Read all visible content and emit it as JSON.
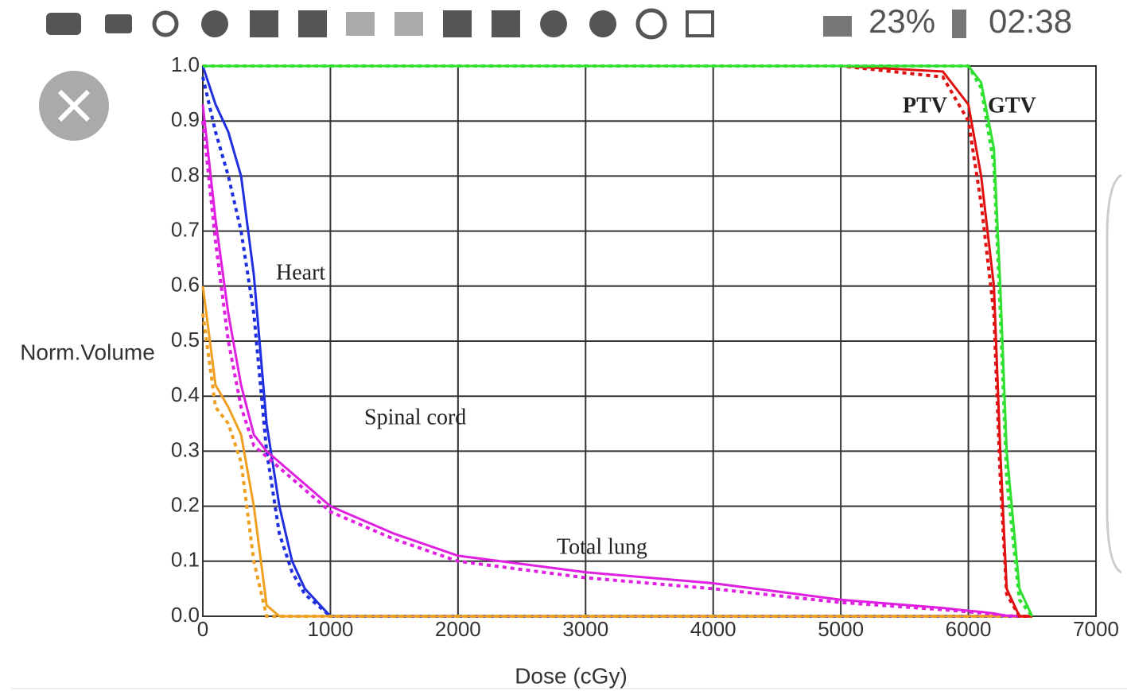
{
  "status_bar": {
    "battery": "23%",
    "time": "02:38"
  },
  "chart_data": {
    "type": "line",
    "xlabel": "Dose (cGy)",
    "ylabel": "Norm.Volume",
    "annotations": [
      "Heart",
      "Spinal cord",
      "Total lung",
      "PTV",
      "GTV"
    ],
    "x": [
      0,
      100,
      200,
      300,
      400,
      500,
      600,
      700,
      800,
      1000,
      1500,
      2000,
      3000,
      4000,
      5000,
      5800,
      6000,
      6100,
      6200,
      6250,
      6300,
      6400,
      6500
    ],
    "series": [
      {
        "color": "#1f2fe0",
        "dash": false,
        "values": [
          1.0,
          0.93,
          0.88,
          0.8,
          0.62,
          0.35,
          0.2,
          0.1,
          0.05,
          0,
          0,
          0,
          0,
          0,
          0,
          0,
          0,
          0,
          0,
          0,
          0,
          0,
          0
        ]
      },
      {
        "color": "#1f2fe0",
        "dash": true,
        "values": [
          0.98,
          0.88,
          0.8,
          0.7,
          0.55,
          0.3,
          0.15,
          0.08,
          0.04,
          0,
          0,
          0,
          0,
          0,
          0,
          0,
          0,
          0,
          0,
          0,
          0,
          0,
          0
        ]
      },
      {
        "color": "#f0a020",
        "dash": false,
        "values": [
          0.6,
          0.42,
          0.38,
          0.33,
          0.2,
          0.02,
          0,
          0,
          0,
          0,
          0,
          0,
          0,
          0,
          0,
          0,
          0,
          0,
          0,
          0,
          0,
          0,
          0
        ]
      },
      {
        "color": "#f0a020",
        "dash": true,
        "values": [
          0.55,
          0.38,
          0.35,
          0.28,
          0.1,
          0,
          0,
          0,
          0,
          0,
          0,
          0,
          0,
          0,
          0,
          0,
          0,
          0,
          0,
          0,
          0,
          0,
          0
        ]
      },
      {
        "color": "#e020e0",
        "dash": false,
        "values": [
          0.93,
          0.72,
          0.55,
          0.42,
          0.33,
          0.3,
          0.28,
          0.26,
          0.24,
          0.2,
          0.15,
          0.11,
          0.08,
          0.06,
          0.03,
          0.015,
          0.01,
          0.008,
          0.005,
          0.003,
          0.001,
          0,
          0
        ]
      },
      {
        "color": "#e020e0",
        "dash": true,
        "values": [
          0.9,
          0.68,
          0.5,
          0.38,
          0.31,
          0.29,
          0.27,
          0.25,
          0.23,
          0.19,
          0.14,
          0.1,
          0.07,
          0.05,
          0.025,
          0.012,
          0.008,
          0.006,
          0.004,
          0.002,
          0.001,
          0,
          0
        ]
      },
      {
        "color": "#e01010",
        "dash": false,
        "values": [
          1,
          1,
          1,
          1,
          1,
          1,
          1,
          1,
          1,
          1,
          1,
          1,
          1,
          1,
          1,
          0.99,
          0.93,
          0.8,
          0.6,
          0.3,
          0.05,
          0,
          0
        ]
      },
      {
        "color": "#e01010",
        "dash": true,
        "values": [
          1,
          1,
          1,
          1,
          1,
          1,
          1,
          1,
          1,
          1,
          1,
          1,
          1,
          1,
          1,
          0.98,
          0.9,
          0.75,
          0.55,
          0.25,
          0.04,
          0,
          0
        ]
      },
      {
        "color": "#30e030",
        "dash": false,
        "values": [
          1,
          1,
          1,
          1,
          1,
          1,
          1,
          1,
          1,
          1,
          1,
          1,
          1,
          1,
          1,
          1,
          1,
          0.97,
          0.85,
          0.6,
          0.3,
          0.05,
          0
        ]
      },
      {
        "color": "#30e030",
        "dash": true,
        "values": [
          1,
          1,
          1,
          1,
          1,
          1,
          1,
          1,
          1,
          1,
          1,
          1,
          1,
          1,
          1,
          1,
          1,
          0.96,
          0.82,
          0.55,
          0.25,
          0.03,
          0
        ]
      }
    ],
    "xlim": [
      0,
      7000
    ],
    "xticks": [
      0,
      1000,
      2000,
      3000,
      4000,
      5000,
      6000,
      7000
    ],
    "ylim": [
      0,
      1
    ],
    "yticks": [
      {
        "value": 0,
        "label": "0.0"
      },
      0.1,
      0.2,
      0.3,
      0.4,
      0.5,
      0.6,
      0.7,
      0.8,
      0.9,
      {
        "value": 1,
        "label": "1.0"
      }
    ],
    "grid": true
  }
}
